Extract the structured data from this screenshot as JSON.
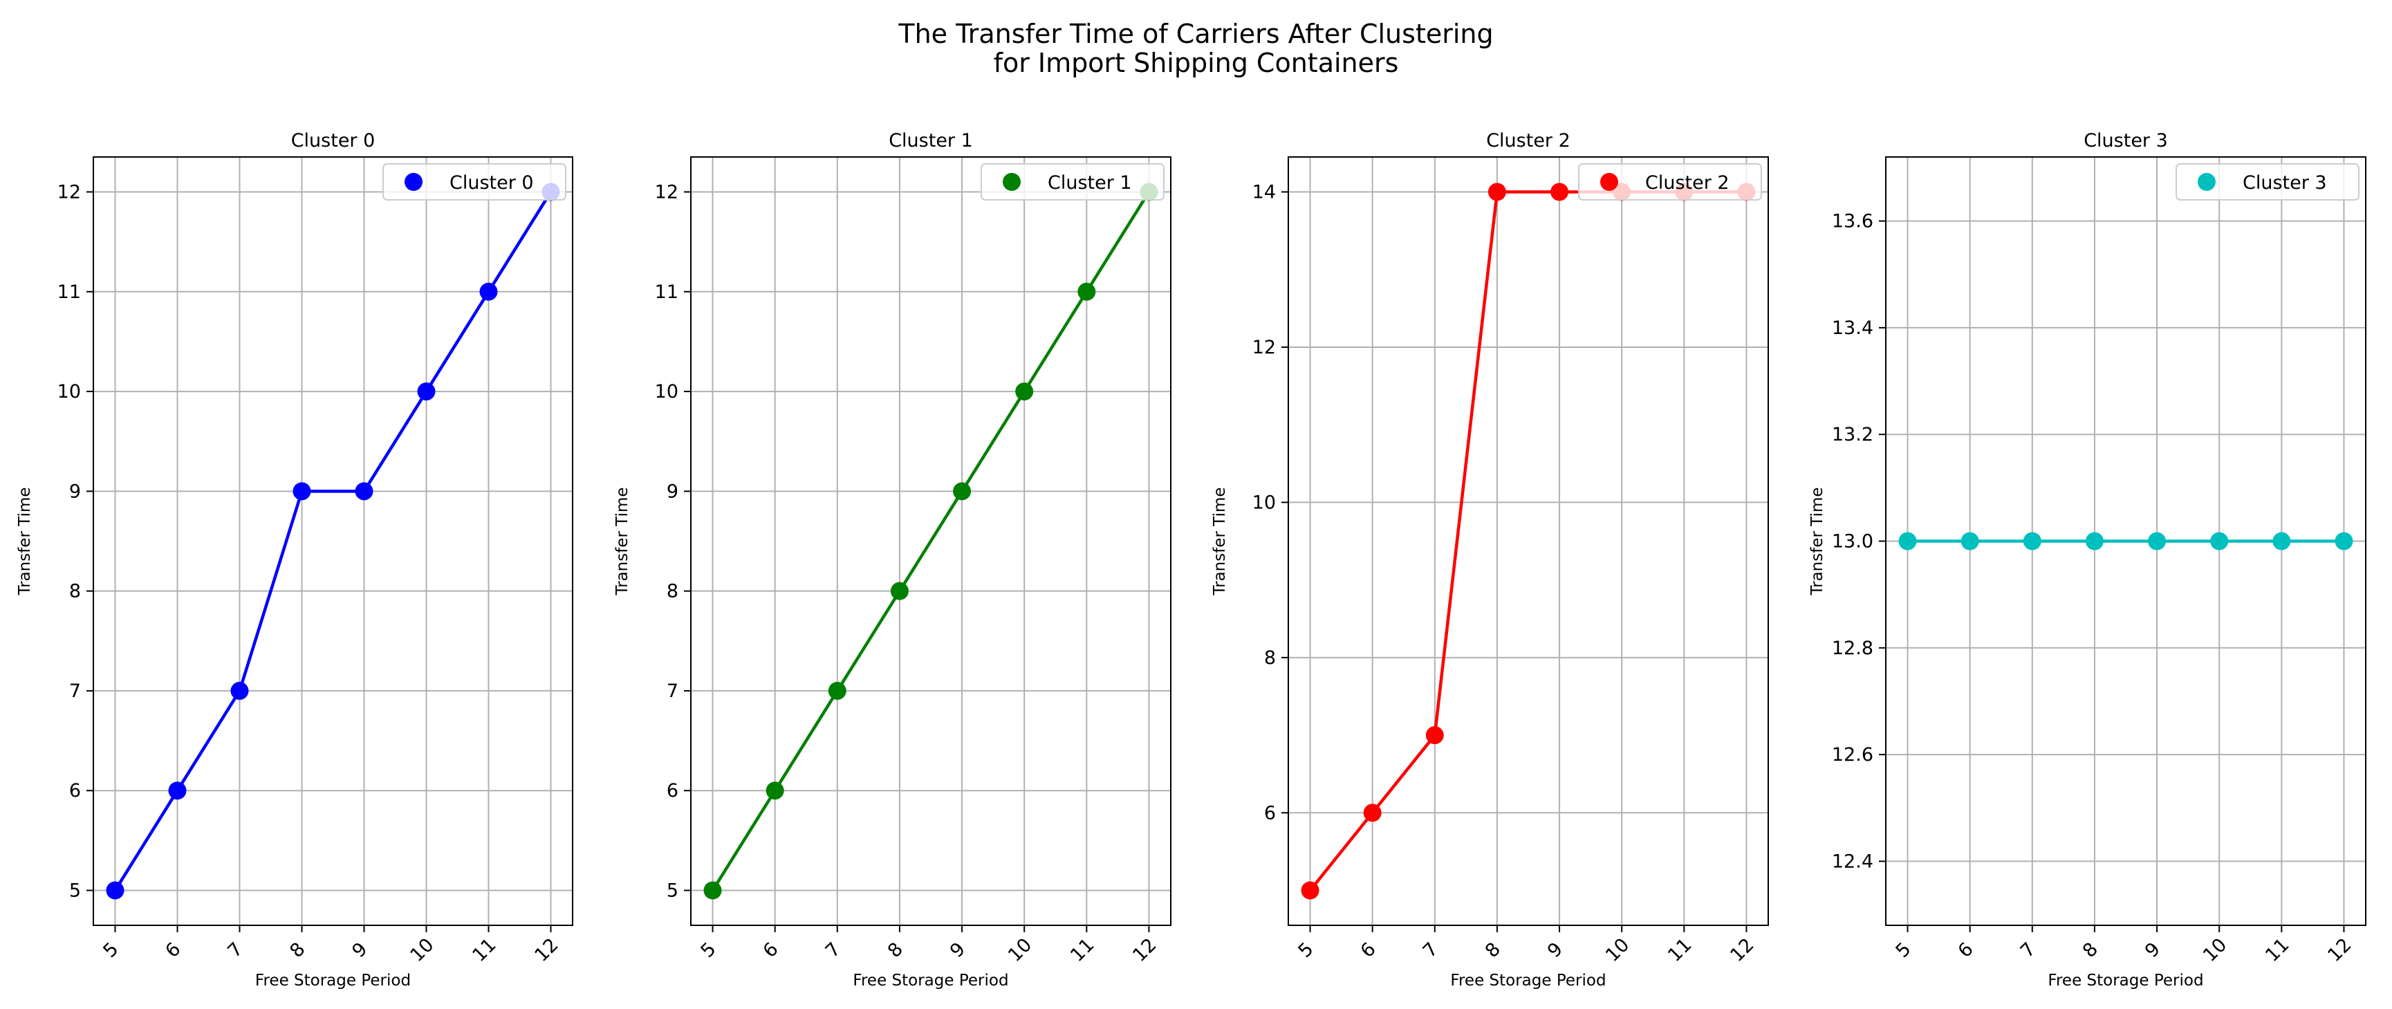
{
  "figure": {
    "title_line1": "The Transfer Time of Carriers After Clustering",
    "title_line2": "for Import Shipping Containers"
  },
  "chart_data": [
    {
      "type": "line",
      "title": "Cluster 0",
      "xlabel": "Free Storage Period",
      "ylabel": "Transfer Time",
      "x": [
        5,
        6,
        7,
        8,
        9,
        10,
        11,
        12
      ],
      "xlim": [
        4.65,
        12.35
      ],
      "ylim": [
        4.65,
        12.35
      ],
      "yticks": [
        5,
        6,
        7,
        8,
        9,
        10,
        11,
        12
      ],
      "yticklabels": [
        "5",
        "6",
        "7",
        "8",
        "9",
        "10",
        "11",
        "12"
      ],
      "grid": true,
      "legend": "upper right",
      "series": [
        {
          "name": "Cluster 0",
          "color": "#0000ff",
          "values": [
            5,
            6,
            7,
            9,
            9,
            10,
            11,
            12
          ]
        }
      ]
    },
    {
      "type": "line",
      "title": "Cluster 1",
      "xlabel": "Free Storage Period",
      "ylabel": "Transfer Time",
      "x": [
        5,
        6,
        7,
        8,
        9,
        10,
        11,
        12
      ],
      "xlim": [
        4.65,
        12.35
      ],
      "ylim": [
        4.65,
        12.35
      ],
      "yticks": [
        5,
        6,
        7,
        8,
        9,
        10,
        11,
        12
      ],
      "yticklabels": [
        "5",
        "6",
        "7",
        "8",
        "9",
        "10",
        "11",
        "12"
      ],
      "grid": true,
      "legend": "upper right",
      "series": [
        {
          "name": "Cluster 1",
          "color": "#008000",
          "values": [
            5,
            6,
            7,
            8,
            9,
            10,
            11,
            12
          ]
        }
      ]
    },
    {
      "type": "line",
      "title": "Cluster 2",
      "xlabel": "Free Storage Period",
      "ylabel": "Transfer Time",
      "x": [
        5,
        6,
        7,
        8,
        9,
        10,
        11,
        12
      ],
      "xlim": [
        4.65,
        12.35
      ],
      "ylim": [
        4.55,
        14.45
      ],
      "yticks": [
        6,
        8,
        10,
        12,
        14
      ],
      "yticklabels": [
        "6",
        "8",
        "10",
        "12",
        "14"
      ],
      "grid": true,
      "legend": "upper right",
      "series": [
        {
          "name": "Cluster 2",
          "color": "#ff0000",
          "values": [
            5,
            6,
            7,
            14,
            14,
            14,
            14,
            14
          ]
        }
      ]
    },
    {
      "type": "line",
      "title": "Cluster 3",
      "xlabel": "Free Storage Period",
      "ylabel": "Transfer Time",
      "x": [
        5,
        6,
        7,
        8,
        9,
        10,
        11,
        12
      ],
      "xlim": [
        4.65,
        12.35
      ],
      "ylim": [
        12.28,
        13.72
      ],
      "yticks": [
        12.4,
        12.6,
        12.8,
        13.0,
        13.2,
        13.4,
        13.6
      ],
      "yticklabels": [
        "12.4",
        "12.6",
        "12.8",
        "13.0",
        "13.2",
        "13.4",
        "13.6"
      ],
      "grid": true,
      "legend": "upper right",
      "series": [
        {
          "name": "Cluster 3",
          "color": "#00bfbf",
          "values": [
            13,
            13,
            13,
            13,
            13,
            13,
            13,
            13
          ]
        }
      ]
    }
  ]
}
